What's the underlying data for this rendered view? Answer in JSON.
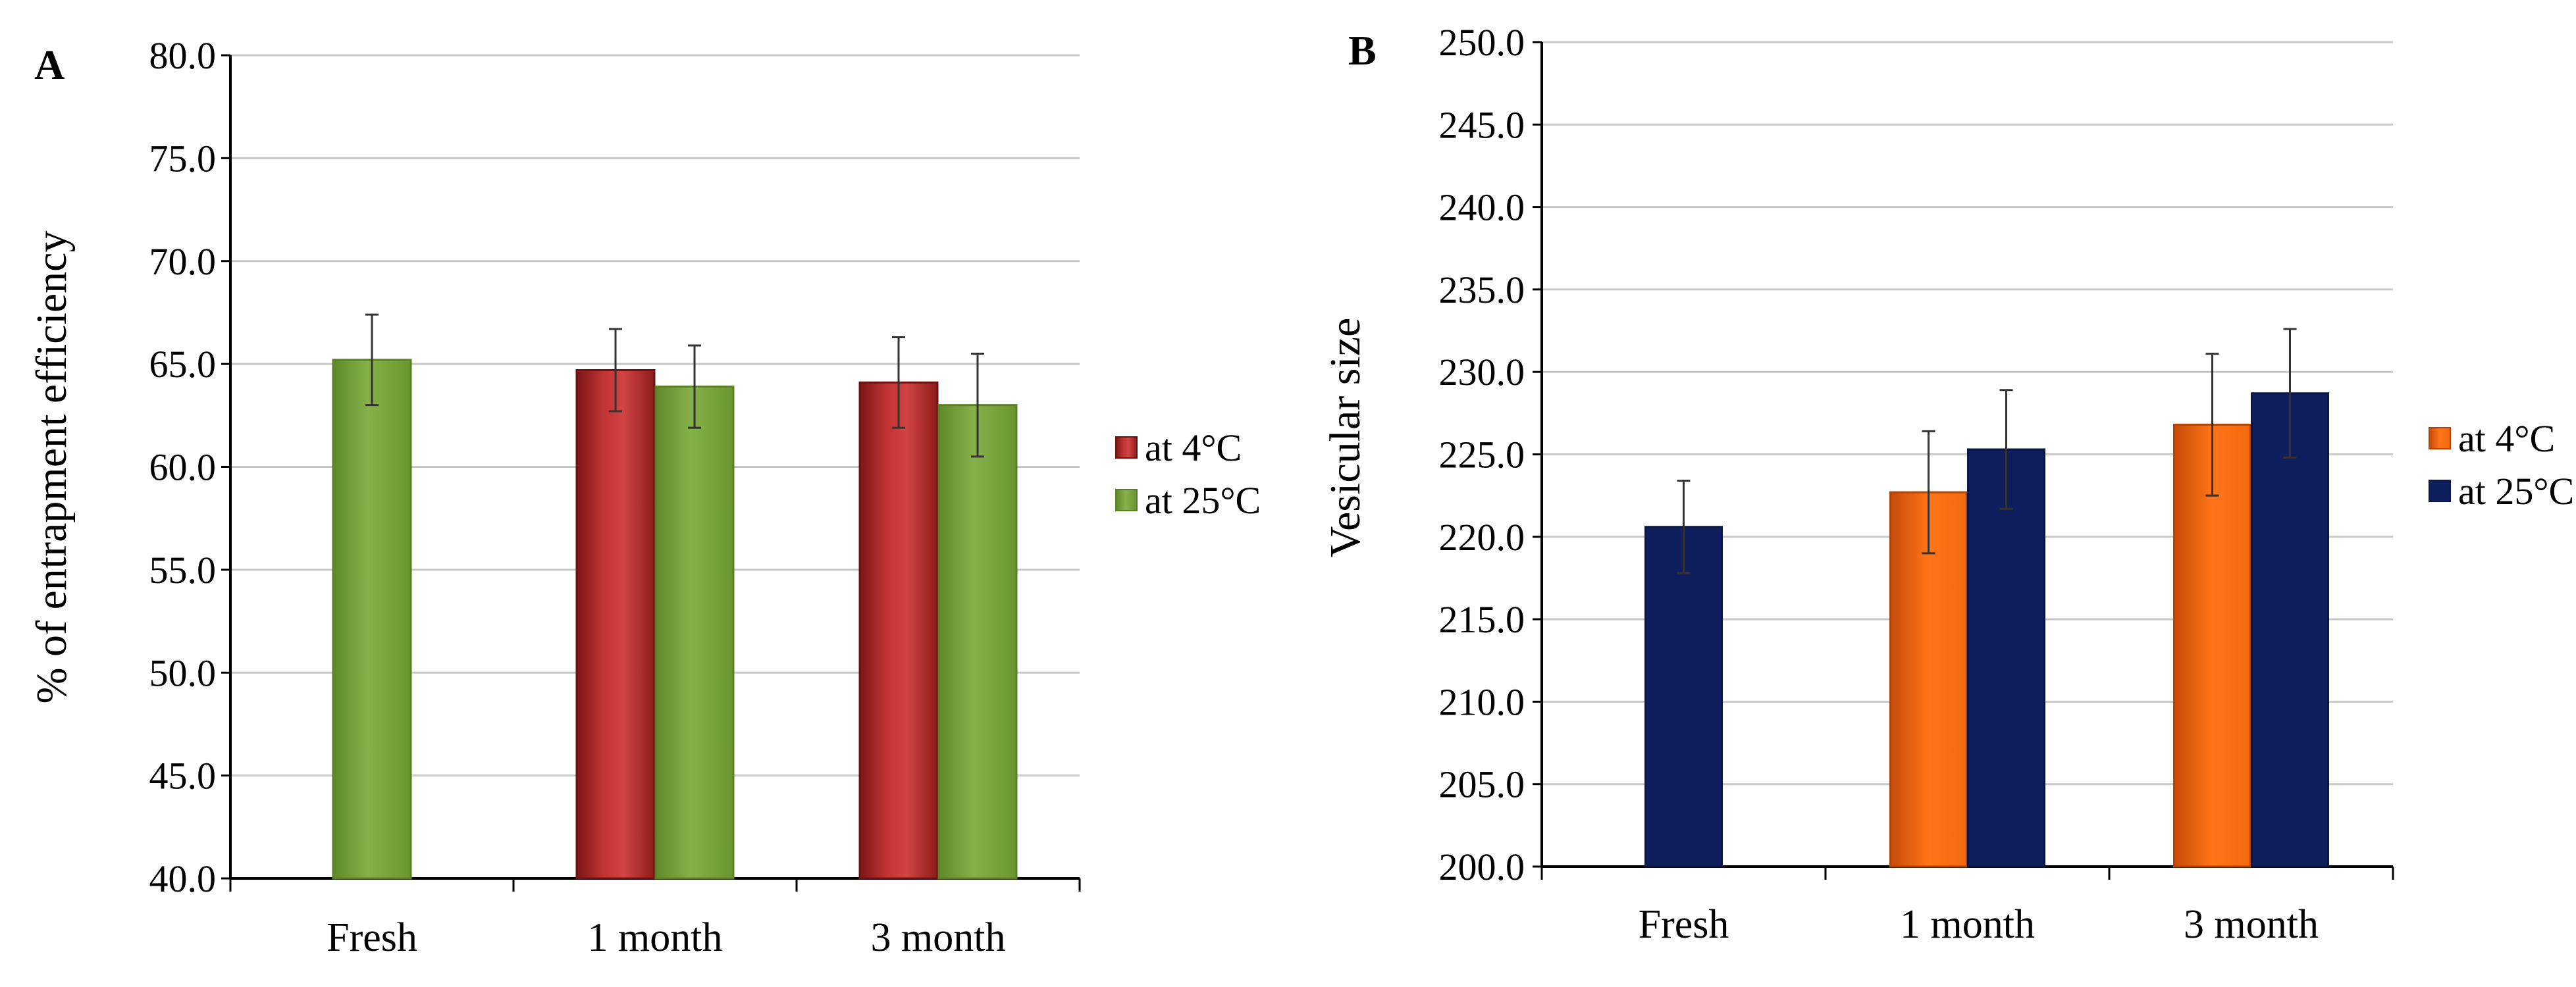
{
  "chart_data": [
    {
      "type": "bar",
      "panel_label": "A",
      "title": "",
      "xlabel": "",
      "ylabel": "% of entrapment efficiency",
      "ylim": [
        40,
        80
      ],
      "ytick_step": 5,
      "categories": [
        "Fresh",
        "1 month",
        "3 month"
      ],
      "series": [
        {
          "name": "at 4°C",
          "color": "#b02a2a",
          "values": [
            null,
            64.7,
            64.1
          ],
          "errors": [
            null,
            2.0,
            2.2
          ]
        },
        {
          "name": "at 25°C",
          "color": "#7aa23c",
          "values": [
            65.2,
            63.9,
            63.0
          ],
          "errors": [
            2.2,
            2.0,
            2.5
          ]
        }
      ],
      "grid": true,
      "legend": "right"
    },
    {
      "type": "bar",
      "panel_label": "B",
      "title": "",
      "xlabel": "",
      "ylabel": "Vesicular size",
      "ylim": [
        200,
        250
      ],
      "ytick_step": 5,
      "categories": [
        "Fresh",
        "1 month",
        "3 month"
      ],
      "series": [
        {
          "name": "at 4°C",
          "color": "#f26a10",
          "values": [
            null,
            222.7,
            226.8
          ],
          "errors": [
            null,
            3.7,
            4.3
          ]
        },
        {
          "name": "at 25°C",
          "color": "#0f1f5e",
          "values": [
            220.6,
            225.3,
            228.7
          ],
          "errors": [
            2.8,
            3.6,
            3.9
          ]
        }
      ],
      "grid": true,
      "legend": "right"
    }
  ]
}
